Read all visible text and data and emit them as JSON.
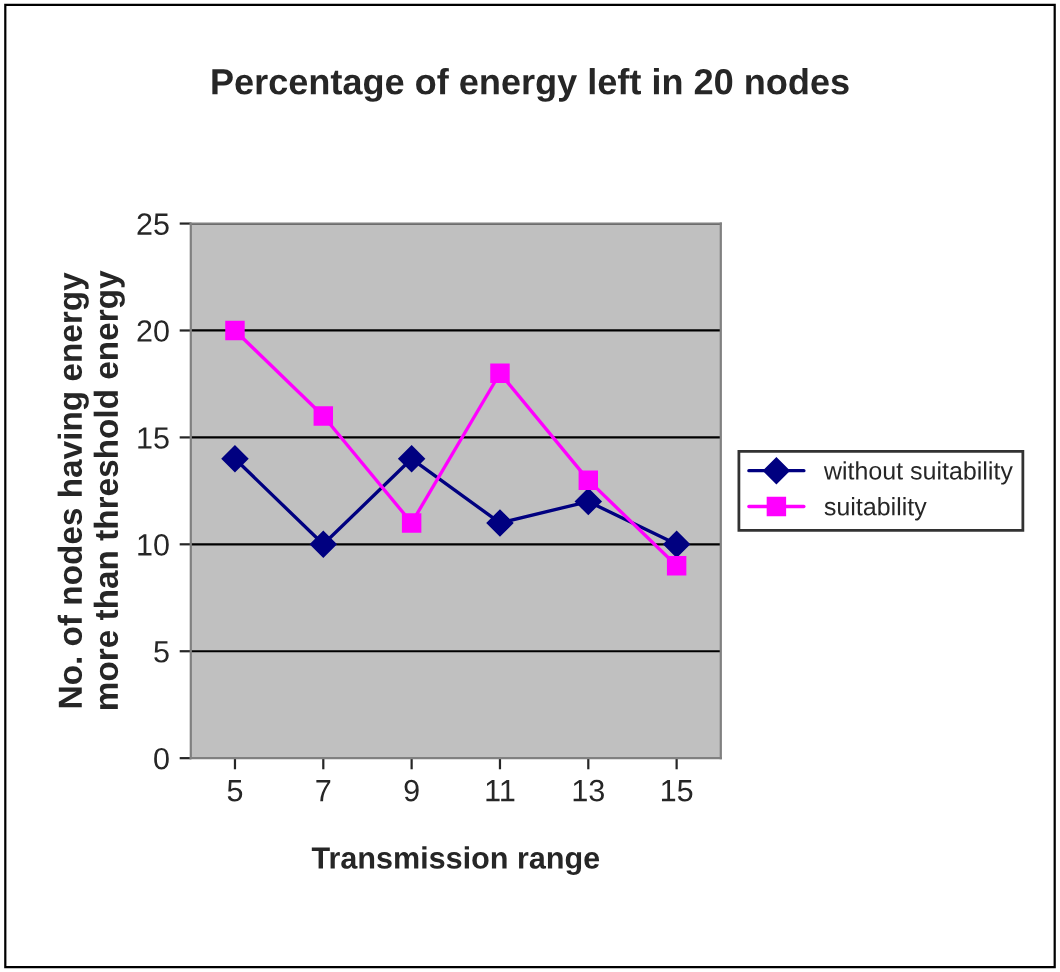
{
  "chart_data": {
    "type": "line",
    "title": "Percentage of energy left in 20 nodes",
    "xlabel": "Transmission range",
    "ylabel": "No. of nodes having energy\nmore than threshold energy",
    "categories": [
      "5",
      "7",
      "9",
      "11",
      "13",
      "15"
    ],
    "series": [
      {
        "name": "without suitability",
        "color": "#000080",
        "marker": "diamond",
        "values": [
          14,
          10,
          14,
          11,
          12,
          10
        ]
      },
      {
        "name": "suitability",
        "color": "#ff00ff",
        "marker": "square",
        "values": [
          20,
          16,
          11,
          18,
          13,
          9
        ]
      }
    ],
    "ylim": [
      0,
      25
    ],
    "yticks": [
      0,
      5,
      10,
      15,
      20,
      25
    ],
    "grid": "y",
    "legend": "right",
    "line_style": "solid"
  }
}
